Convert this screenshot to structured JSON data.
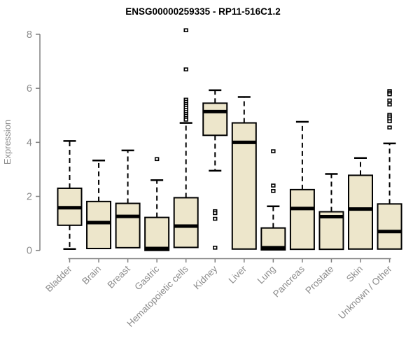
{
  "title": "ENSG00000259335 - RP11-516C1.2",
  "colors": {
    "box_fill": "#EDE6CB",
    "box_stroke": "#000000",
    "median": "#000000",
    "whisker": "#000000",
    "axis_line": "#808080",
    "axis_text": "#8c8c8c",
    "title_text": "#000000",
    "outlier_stroke": "#000000",
    "outlier_fill": "#ffffff"
  },
  "chart_data": {
    "type": "boxplot",
    "title": "ENSG00000259335 - RP11-516C1.2",
    "xlabel": "",
    "ylabel": "Expression",
    "ylim": [
      0,
      8
    ],
    "yticks": [
      0,
      2,
      4,
      6,
      8
    ],
    "grid": false,
    "legend": false,
    "categories": [
      "Bladder",
      "Brain",
      "Breast",
      "Gastric",
      "Hematopoietic cells",
      "Kidney",
      "Liver",
      "Lung",
      "Pancreas",
      "Prostate",
      "Skin",
      "Unknown / Other"
    ],
    "series": [
      {
        "name": "Bladder",
        "whisker_low": 0.05,
        "q1": 0.93,
        "median": 1.58,
        "q3": 2.3,
        "whisker_high": 4.05,
        "outliers": []
      },
      {
        "name": "Brain",
        "whisker_low": 0.07,
        "q1": 0.07,
        "median": 1.03,
        "q3": 1.81,
        "whisker_high": 3.33,
        "outliers": []
      },
      {
        "name": "Breast",
        "whisker_low": 0.1,
        "q1": 0.1,
        "median": 1.26,
        "q3": 1.74,
        "whisker_high": 3.7,
        "outliers": []
      },
      {
        "name": "Gastric",
        "whisker_low": 0.0,
        "q1": 0.0,
        "median": 0.07,
        "q3": 1.22,
        "whisker_high": 2.6,
        "outliers": [
          3.38
        ]
      },
      {
        "name": "Hematopoietic cells",
        "whisker_low": 0.11,
        "q1": 0.11,
        "median": 0.9,
        "q3": 1.95,
        "whisker_high": 4.72,
        "outliers": [
          8.15,
          6.7,
          5.58,
          5.5,
          5.42,
          5.35,
          5.28,
          5.2,
          5.12,
          5.05,
          4.98,
          4.9,
          4.84
        ]
      },
      {
        "name": "Kidney",
        "whisker_low": 2.95,
        "q1": 4.26,
        "median": 5.14,
        "q3": 5.45,
        "whisker_high": 5.93,
        "outliers": [
          1.45,
          1.38,
          1.17,
          0.1
        ]
      },
      {
        "name": "Liver",
        "whisker_low": 0.05,
        "q1": 0.05,
        "median": 4.0,
        "q3": 4.72,
        "whisker_high": 5.68,
        "outliers": []
      },
      {
        "name": "Lung",
        "whisker_low": 0.02,
        "q1": 0.02,
        "median": 0.1,
        "q3": 0.83,
        "whisker_high": 1.63,
        "outliers": [
          3.67,
          2.4,
          2.2
        ]
      },
      {
        "name": "Pancreas",
        "whisker_low": 0.04,
        "q1": 0.04,
        "median": 1.55,
        "q3": 2.25,
        "whisker_high": 4.76,
        "outliers": []
      },
      {
        "name": "Prostate",
        "whisker_low": 0.04,
        "q1": 0.04,
        "median": 1.25,
        "q3": 1.43,
        "whisker_high": 2.83,
        "outliers": []
      },
      {
        "name": "Skin",
        "whisker_low": 0.05,
        "q1": 0.05,
        "median": 1.53,
        "q3": 2.78,
        "whisker_high": 3.42,
        "outliers": []
      },
      {
        "name": "Unknown / Other",
        "whisker_low": 0.05,
        "q1": 0.05,
        "median": 0.7,
        "q3": 1.72,
        "whisker_high": 3.96,
        "outliers": [
          5.9,
          5.84,
          5.78,
          5.55,
          5.4,
          5.02,
          4.96,
          4.88,
          4.78,
          4.55
        ]
      }
    ]
  }
}
